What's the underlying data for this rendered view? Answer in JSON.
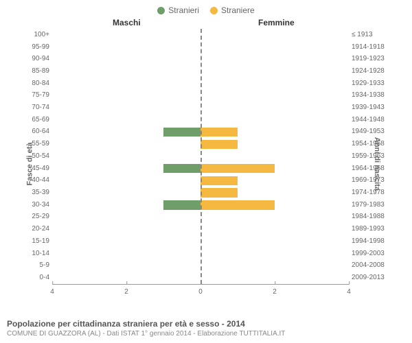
{
  "legend": {
    "male": {
      "label": "Stranieri",
      "color": "#6f9e6b"
    },
    "female": {
      "label": "Straniere",
      "color": "#f5b942"
    }
  },
  "headers": {
    "left": "Maschi",
    "right": "Femmine"
  },
  "axis_labels": {
    "left": "Fasce di età",
    "right": "Anni di nascita"
  },
  "colors": {
    "background": "#ffffff",
    "centerline": "#888844",
    "text": "#666666"
  },
  "chart": {
    "type": "population-pyramid",
    "xmax": 4,
    "xticks_left": [
      4,
      2,
      0
    ],
    "xticks_right": [
      0,
      2,
      4
    ],
    "categories": [
      "100+",
      "95-99",
      "90-94",
      "85-89",
      "80-84",
      "75-79",
      "70-74",
      "65-69",
      "60-64",
      "55-59",
      "50-54",
      "45-49",
      "40-44",
      "35-39",
      "30-34",
      "25-29",
      "20-24",
      "15-19",
      "10-14",
      "5-9",
      "0-4"
    ],
    "birth_years": [
      "≤ 1913",
      "1914-1918",
      "1919-1923",
      "1924-1928",
      "1929-1933",
      "1934-1938",
      "1939-1943",
      "1944-1948",
      "1949-1953",
      "1954-1958",
      "1959-1963",
      "1964-1968",
      "1969-1973",
      "1974-1978",
      "1979-1983",
      "1984-1988",
      "1989-1993",
      "1994-1998",
      "1999-2003",
      "2004-2008",
      "2009-2013"
    ],
    "male": [
      0,
      0,
      0,
      0,
      0,
      0,
      0,
      0,
      1,
      0,
      0,
      1,
      0,
      0,
      1,
      0,
      0,
      0,
      0,
      0,
      0
    ],
    "female": [
      0,
      0,
      0,
      0,
      0,
      0,
      0,
      0,
      1,
      1,
      0,
      2,
      1,
      1,
      2,
      0,
      0,
      0,
      0,
      0,
      0
    ]
  },
  "caption": {
    "title": "Popolazione per cittadinanza straniera per età e sesso - 2014",
    "subtitle": "COMUNE DI GUAZZORA (AL) - Dati ISTAT 1° gennaio 2014 - Elaborazione TUTTITALIA.IT"
  }
}
